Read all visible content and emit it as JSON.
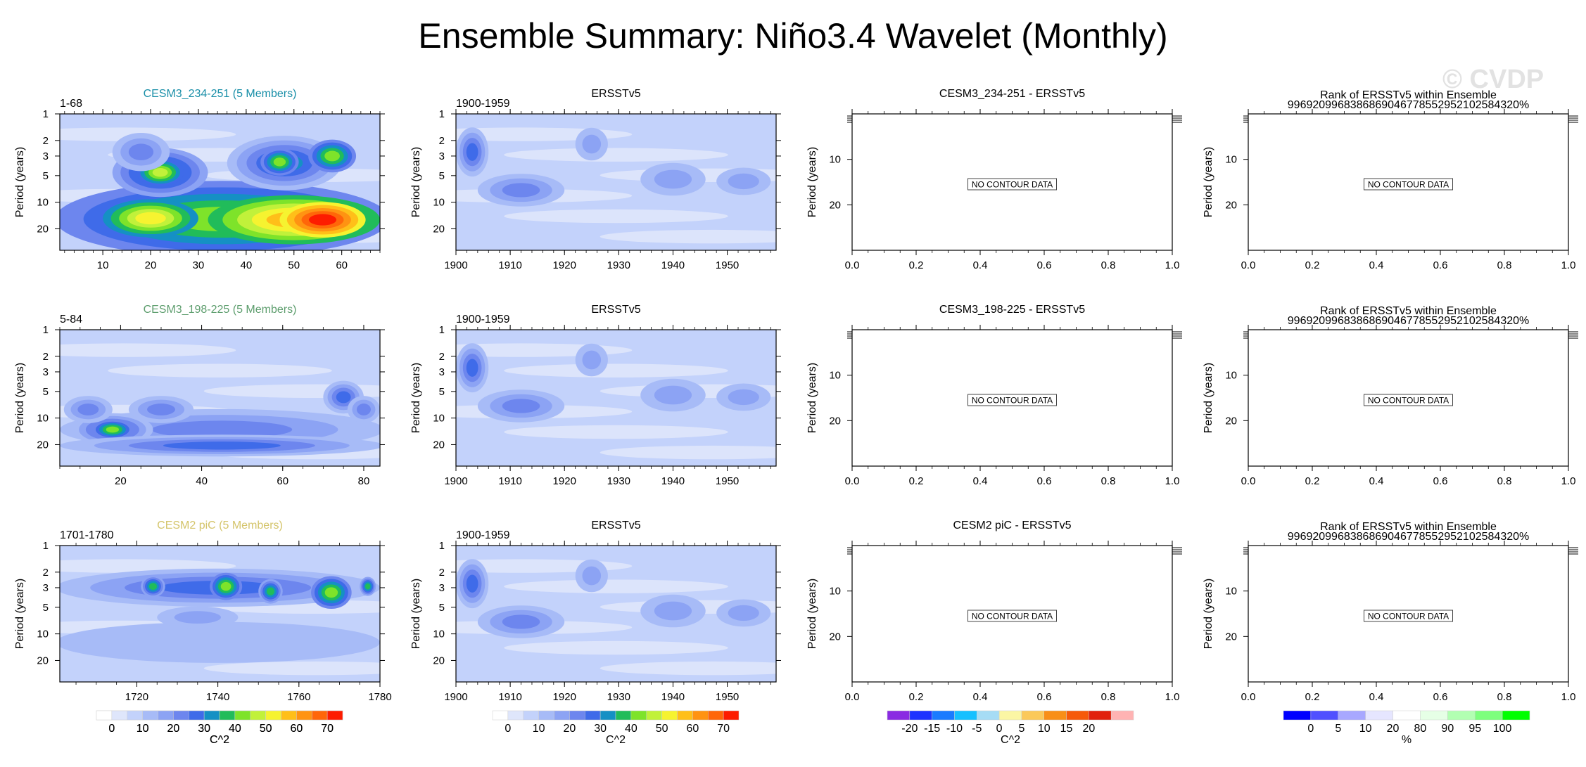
{
  "title": "Ensemble Summary: Niño3.4 Wavelet (Monthly)",
  "watermark": "© CVDP",
  "colors": {
    "wavelet_scale": [
      "#ffffff",
      "#dfe6fb",
      "#c3d2fb",
      "#a7bbf7",
      "#8ca3f4",
      "#6d86ee",
      "#3f6be9",
      "#1590c4",
      "#21bc5a",
      "#7ee32a",
      "#c1f13a",
      "#f6f330",
      "#ffbf19",
      "#ff9312",
      "#ff6609",
      "#fd1c00"
    ],
    "diff_scale": [
      "#8a2be2",
      "#1d33ff",
      "#1a7bff",
      "#16c0ff",
      "#a6dcf5",
      "#fbf6a4",
      "#fbc95a",
      "#f88f18",
      "#f65a0a",
      "#e1200c",
      "#ffb3b3"
    ],
    "rank_scale": [
      "#0000ff",
      "#5050ff",
      "#a8a8ff",
      "#e6e6ff",
      "#ffffff",
      "#e6ffe6",
      "#b2ffb2",
      "#7dff7d",
      "#00ff00"
    ],
    "model_title_1": "#1a8fa8",
    "model_title_2": "#5e9e6e",
    "model_title_3": "#d4c46a",
    "axis": "#000000",
    "no_data_box": "#444444"
  },
  "chart_data": [
    {
      "type": "heatmap",
      "row": 1,
      "col": 1,
      "title": "CESM3_234-251 (5 Members)",
      "left_label": "1-68",
      "xlabel": "",
      "ylabel": "Period (years)",
      "x_range": [
        1,
        68
      ],
      "x_ticks": [
        10,
        20,
        30,
        40,
        50,
        60
      ],
      "y_range": [
        1,
        35
      ],
      "y_ticks": [
        1,
        2,
        3,
        5,
        10,
        20
      ],
      "y_scale": "log-reversed",
      "colorbar_levels": [
        0,
        10,
        20,
        30,
        40,
        50,
        60,
        70
      ],
      "units": "C^2",
      "blobs": [
        {
          "x": 35,
          "y": 15.5,
          "rx": 35,
          "ry": 0.28,
          "level": 9
        },
        {
          "x": 50,
          "y": 15.8,
          "rx": 18,
          "ry": 0.18,
          "level": 12
        },
        {
          "x": 56,
          "y": 15.8,
          "rx": 9,
          "ry": 0.13,
          "level": 15
        },
        {
          "x": 20,
          "y": 15.2,
          "rx": 10,
          "ry": 0.14,
          "level": 11
        },
        {
          "x": 22,
          "y": 4.6,
          "rx": 10,
          "ry": 0.18,
          "level": 8
        },
        {
          "x": 22,
          "y": 4.6,
          "rx": 5,
          "ry": 0.1,
          "level": 10
        },
        {
          "x": 48,
          "y": 3.6,
          "rx": 12,
          "ry": 0.2,
          "level": 7
        },
        {
          "x": 58,
          "y": 3.0,
          "rx": 5,
          "ry": 0.12,
          "level": 9
        },
        {
          "x": 47,
          "y": 3.5,
          "rx": 4,
          "ry": 0.1,
          "level": 9
        },
        {
          "x": 18,
          "y": 2.7,
          "rx": 6,
          "ry": 0.14,
          "level": 5
        }
      ]
    },
    {
      "type": "heatmap",
      "row": 1,
      "col": 2,
      "title": "ERSSTv5",
      "left_label": "1900-1959",
      "xlabel": "",
      "ylabel": "Period (years)",
      "x_range": [
        1900,
        1959
      ],
      "x_ticks": [
        1900,
        1910,
        1920,
        1930,
        1940,
        1950
      ],
      "y_range": [
        1,
        35
      ],
      "y_ticks": [
        1,
        2,
        3,
        5,
        10,
        20
      ],
      "y_scale": "log-reversed",
      "colorbar_levels": [],
      "units": "",
      "blobs": [
        {
          "x": 1903,
          "y": 2.7,
          "rx": 3,
          "ry": 0.18,
          "level": 6
        },
        {
          "x": 1912,
          "y": 7.3,
          "rx": 8,
          "ry": 0.12,
          "level": 5
        },
        {
          "x": 1925,
          "y": 2.2,
          "rx": 3,
          "ry": 0.12,
          "level": 4
        },
        {
          "x": 1940,
          "y": 5.5,
          "rx": 6,
          "ry": 0.12,
          "level": 4
        },
        {
          "x": 1953,
          "y": 5.8,
          "rx": 5,
          "ry": 0.1,
          "level": 4
        }
      ]
    },
    {
      "type": "heatmap",
      "row": 1,
      "col": 3,
      "title": "CESM3_234-251 - ERSSTv5",
      "left_label": "",
      "xlabel": "",
      "ylabel": "Period (years)",
      "x_range": [
        0.0,
        1.0
      ],
      "x_ticks": [
        0.0,
        0.2,
        0.4,
        0.6,
        0.8,
        1.0
      ],
      "y_ticks": [
        10,
        20
      ],
      "y_scale": "linear-reversed",
      "no_data_text": "NO CONTOUR DATA",
      "colorbar_levels": [],
      "units": ""
    },
    {
      "type": "heatmap",
      "row": 1,
      "col": 4,
      "title": "Rank of ERSSTv5 within Ensemble",
      "subtitle": "99692099683868690467785529521025843​20%",
      "left_label": "",
      "xlabel": "",
      "ylabel": "Period (years)",
      "x_range": [
        0.0,
        1.0
      ],
      "x_ticks": [
        0.0,
        0.2,
        0.4,
        0.6,
        0.8,
        1.0
      ],
      "y_ticks": [
        10,
        20
      ],
      "y_scale": "linear-reversed",
      "no_data_text": "NO CONTOUR DATA",
      "colorbar_levels": [],
      "units": ""
    },
    {
      "type": "heatmap",
      "row": 2,
      "col": 1,
      "title": "CESM3_198-225 (5 Members)",
      "left_label": "5-84",
      "xlabel": "",
      "ylabel": "Period (years)",
      "x_range": [
        5,
        84
      ],
      "x_ticks": [
        20,
        40,
        60,
        80
      ],
      "y_range": [
        1,
        35
      ],
      "y_ticks": [
        1,
        2,
        3,
        5,
        10,
        20
      ],
      "y_scale": "log-reversed",
      "colorbar_levels": [],
      "units": "",
      "blobs": [
        {
          "x": 45,
          "y": 13.5,
          "rx": 40,
          "ry": 0.15,
          "level": 5
        },
        {
          "x": 18,
          "y": 13.5,
          "rx": 10,
          "ry": 0.12,
          "level": 7
        },
        {
          "x": 18,
          "y": 13.5,
          "rx": 5,
          "ry": 0.07,
          "level": 9
        },
        {
          "x": 45,
          "y": 20.5,
          "rx": 40,
          "ry": 0.08,
          "level": 6
        },
        {
          "x": 30,
          "y": 8.0,
          "rx": 8,
          "ry": 0.1,
          "level": 5
        },
        {
          "x": 75,
          "y": 5.8,
          "rx": 5,
          "ry": 0.12,
          "level": 6
        },
        {
          "x": 80,
          "y": 8.0,
          "rx": 4,
          "ry": 0.1,
          "level": 5
        },
        {
          "x": 12,
          "y": 8.0,
          "rx": 6,
          "ry": 0.1,
          "level": 5
        }
      ]
    },
    {
      "type": "heatmap",
      "row": 2,
      "col": 2,
      "title": "ERSSTv5",
      "left_label": "1900-1959",
      "xlabel": "",
      "ylabel": "Period (years)",
      "x_range": [
        1900,
        1959
      ],
      "x_ticks": [
        1900,
        1910,
        1920,
        1930,
        1940,
        1950
      ],
      "y_range": [
        1,
        35
      ],
      "y_ticks": [
        1,
        2,
        3,
        5,
        10,
        20
      ],
      "y_scale": "log-reversed",
      "colorbar_levels": [],
      "units": "",
      "blobs": [
        {
          "x": 1903,
          "y": 2.7,
          "rx": 3,
          "ry": 0.18,
          "level": 6
        },
        {
          "x": 1912,
          "y": 7.3,
          "rx": 8,
          "ry": 0.12,
          "level": 5
        },
        {
          "x": 1925,
          "y": 2.2,
          "rx": 3,
          "ry": 0.12,
          "level": 4
        },
        {
          "x": 1940,
          "y": 5.5,
          "rx": 6,
          "ry": 0.12,
          "level": 4
        },
        {
          "x": 1953,
          "y": 5.8,
          "rx": 5,
          "ry": 0.1,
          "level": 4
        }
      ]
    },
    {
      "type": "heatmap",
      "row": 2,
      "col": 3,
      "title": "CESM3_198-225 - ERSSTv5",
      "left_label": "",
      "xlabel": "",
      "ylabel": "Period (years)",
      "x_range": [
        0.0,
        1.0
      ],
      "x_ticks": [
        0.0,
        0.2,
        0.4,
        0.6,
        0.8,
        1.0
      ],
      "y_ticks": [
        10,
        20
      ],
      "y_scale": "linear-reversed",
      "no_data_text": "NO CONTOUR DATA",
      "colorbar_levels": [],
      "units": ""
    },
    {
      "type": "heatmap",
      "row": 2,
      "col": 4,
      "title": "Rank of ERSSTv5 within Ensemble",
      "subtitle": "99692099683868690467785529521025843​20%",
      "left_label": "",
      "xlabel": "",
      "ylabel": "Period (years)",
      "x_range": [
        0.0,
        1.0
      ],
      "x_ticks": [
        0.0,
        0.2,
        0.4,
        0.6,
        0.8,
        1.0
      ],
      "y_ticks": [
        10,
        20
      ],
      "y_scale": "linear-reversed",
      "no_data_text": "NO CONTOUR DATA",
      "colorbar_levels": [],
      "units": ""
    },
    {
      "type": "heatmap",
      "row": 3,
      "col": 1,
      "title": "CESM2 piC (5 Members)",
      "left_label": "1701-1780",
      "xlabel": "",
      "ylabel": "Period (years)",
      "x_range": [
        1701,
        1780
      ],
      "x_ticks": [
        1720,
        1740,
        1760,
        1780
      ],
      "y_range": [
        1,
        35
      ],
      "y_ticks": [
        1,
        2,
        3,
        5,
        10,
        20
      ],
      "y_scale": "log-reversed",
      "colorbar_levels": [
        0,
        10,
        20,
        30,
        40,
        50,
        60,
        70
      ],
      "units": "C^2",
      "blobs": [
        {
          "x": 1740,
          "y": 3.0,
          "rx": 40,
          "ry": 0.14,
          "level": 6
        },
        {
          "x": 1742,
          "y": 2.9,
          "rx": 4,
          "ry": 0.1,
          "level": 9
        },
        {
          "x": 1768,
          "y": 3.4,
          "rx": 5,
          "ry": 0.12,
          "level": 9
        },
        {
          "x": 1753,
          "y": 3.3,
          "rx": 3,
          "ry": 0.09,
          "level": 8
        },
        {
          "x": 1724,
          "y": 2.9,
          "rx": 3,
          "ry": 0.08,
          "level": 8
        },
        {
          "x": 1777,
          "y": 2.9,
          "rx": 2,
          "ry": 0.07,
          "level": 8
        },
        {
          "x": 1740,
          "y": 12.5,
          "rx": 40,
          "ry": 0.15,
          "level": 3
        },
        {
          "x": 1735,
          "y": 6.5,
          "rx": 10,
          "ry": 0.08,
          "level": 4
        }
      ]
    },
    {
      "type": "heatmap",
      "row": 3,
      "col": 2,
      "title": "ERSSTv5",
      "left_label": "1900-1959",
      "xlabel": "",
      "ylabel": "Period (years)",
      "x_range": [
        1900,
        1959
      ],
      "x_ticks": [
        1900,
        1910,
        1920,
        1930,
        1940,
        1950
      ],
      "y_range": [
        1,
        35
      ],
      "y_ticks": [
        1,
        2,
        3,
        5,
        10,
        20
      ],
      "y_scale": "log-reversed",
      "colorbar_levels": [
        0,
        10,
        20,
        30,
        40,
        50,
        60,
        70
      ],
      "units": "C^2",
      "blobs": [
        {
          "x": 1903,
          "y": 2.7,
          "rx": 3,
          "ry": 0.18,
          "level": 6
        },
        {
          "x": 1912,
          "y": 7.3,
          "rx": 8,
          "ry": 0.12,
          "level": 5
        },
        {
          "x": 1925,
          "y": 2.2,
          "rx": 3,
          "ry": 0.12,
          "level": 4
        },
        {
          "x": 1940,
          "y": 5.5,
          "rx": 6,
          "ry": 0.12,
          "level": 4
        },
        {
          "x": 1953,
          "y": 5.8,
          "rx": 5,
          "ry": 0.1,
          "level": 4
        }
      ]
    },
    {
      "type": "heatmap",
      "row": 3,
      "col": 3,
      "title": "CESM2 piC - ERSSTv5",
      "left_label": "",
      "xlabel": "",
      "ylabel": "Period (years)",
      "x_range": [
        0.0,
        1.0
      ],
      "x_ticks": [
        0.0,
        0.2,
        0.4,
        0.6,
        0.8,
        1.0
      ],
      "y_ticks": [
        10,
        20
      ],
      "y_scale": "linear-reversed",
      "no_data_text": "NO CONTOUR DATA",
      "colorbar_levels": [
        -20,
        -15,
        -10,
        -5,
        0,
        5,
        10,
        15,
        20
      ],
      "units": "C^2"
    },
    {
      "type": "heatmap",
      "row": 3,
      "col": 4,
      "title": "Rank of ERSSTv5 within Ensemble",
      "subtitle": "99692099683868690467785529521025843​20%",
      "left_label": "",
      "xlabel": "",
      "ylabel": "Period (years)",
      "x_range": [
        0.0,
        1.0
      ],
      "x_ticks": [
        0.0,
        0.2,
        0.4,
        0.6,
        0.8,
        1.0
      ],
      "y_ticks": [
        10,
        20
      ],
      "y_scale": "linear-reversed",
      "no_data_text": "NO CONTOUR DATA",
      "colorbar_levels": [
        0,
        5,
        10,
        20,
        80,
        90,
        95,
        100
      ],
      "units": "%"
    }
  ]
}
